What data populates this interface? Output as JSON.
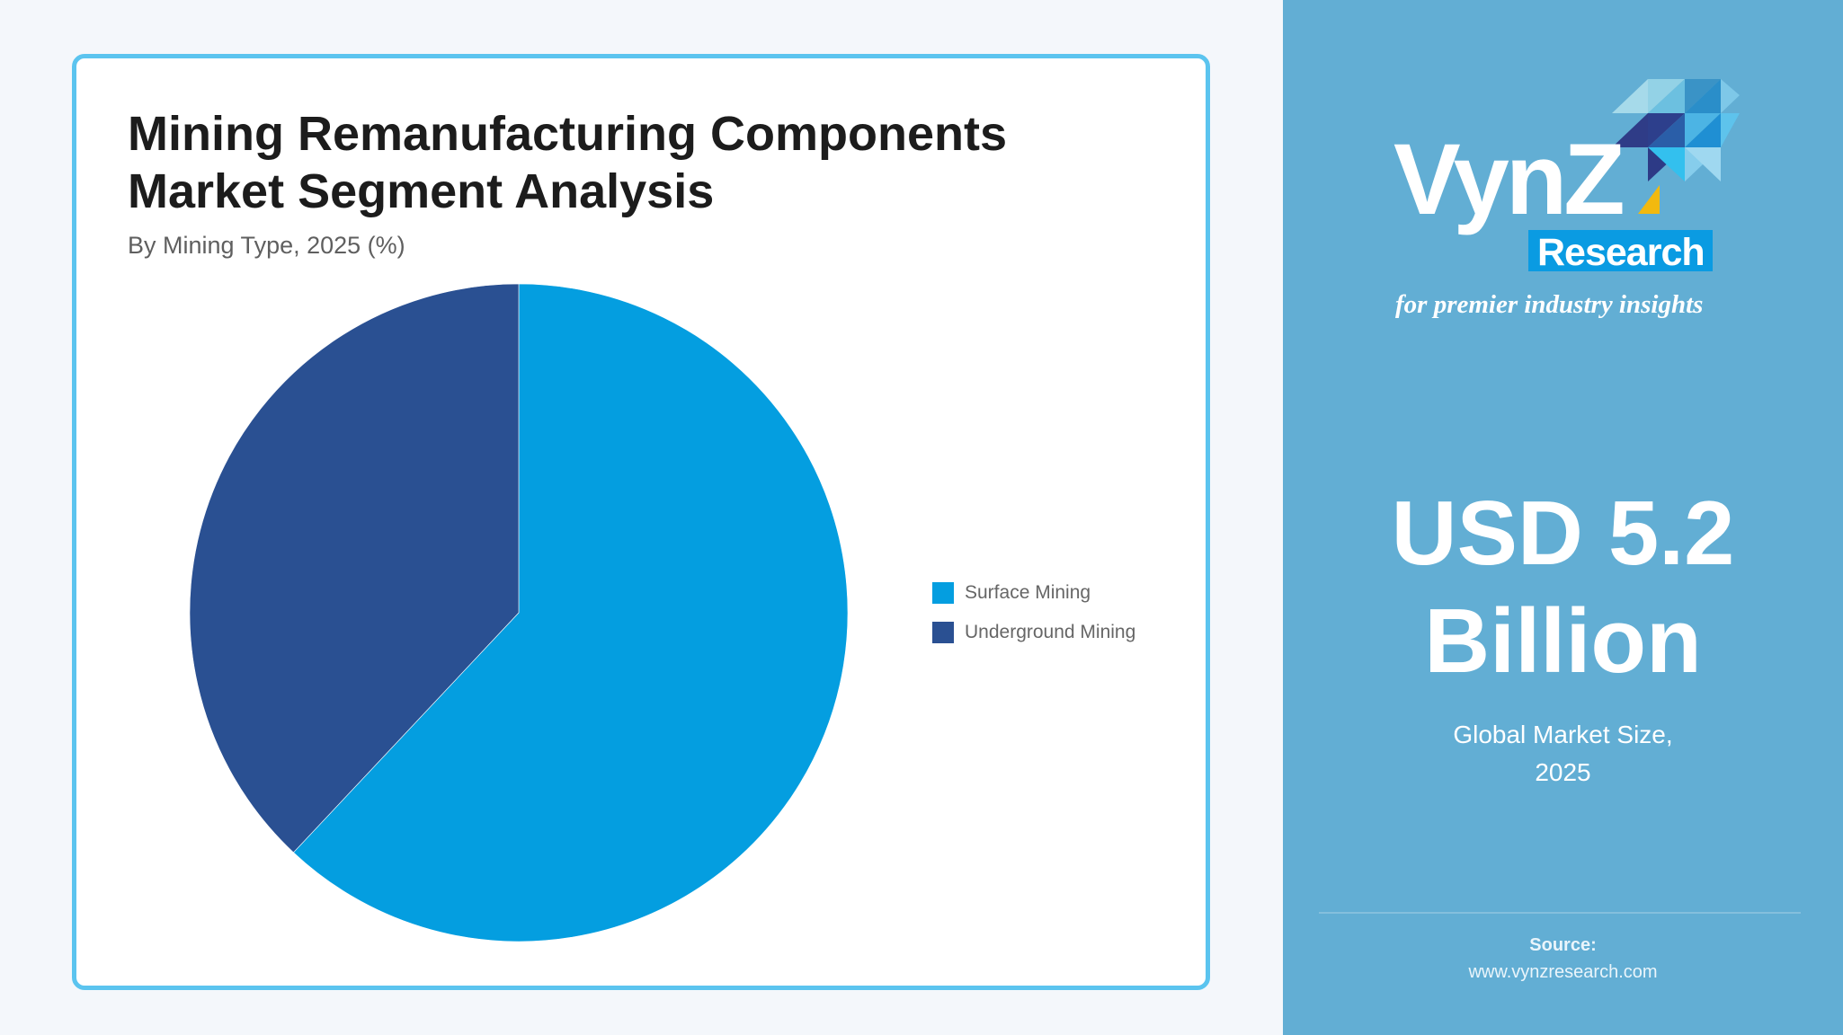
{
  "card": {
    "title_line1": "Mining Remanufacturing Components",
    "title_line2": "Market Segment Analysis",
    "subtitle": "By Mining Type, 2025 (%)"
  },
  "chart_data": {
    "type": "pie",
    "title": "Mining Remanufacturing Components Market Segment Analysis",
    "subtitle": "By Mining Type, 2025 (%)",
    "categories": [
      "Surface Mining",
      "Underground Mining"
    ],
    "values": [
      62,
      38
    ],
    "unit": "%",
    "colors": [
      "#049ee0",
      "#2a5092"
    ],
    "start_angle_deg": 0,
    "direction": "clockwise",
    "legend_position": "right",
    "data_labels": false
  },
  "legend": {
    "items": [
      {
        "label": "Surface Mining",
        "color": "#049ee0"
      },
      {
        "label": "Underground Mining",
        "color": "#2a5092"
      }
    ]
  },
  "side": {
    "brand": {
      "name_main": "VynZ",
      "name_box": "Research",
      "tagline": "for premier industry insights"
    },
    "kpi": {
      "value_line1": "USD 5.2",
      "value_line2": "Billion",
      "caption_line1": "Global Market Size,",
      "caption_line2": "2025"
    },
    "source": {
      "label": "Source:",
      "url": "www.vynzresearch.com"
    },
    "colors": {
      "panel": "#62aed4",
      "accent_box": "#0a9be2",
      "accent_yellow": "#f2b90f"
    }
  }
}
